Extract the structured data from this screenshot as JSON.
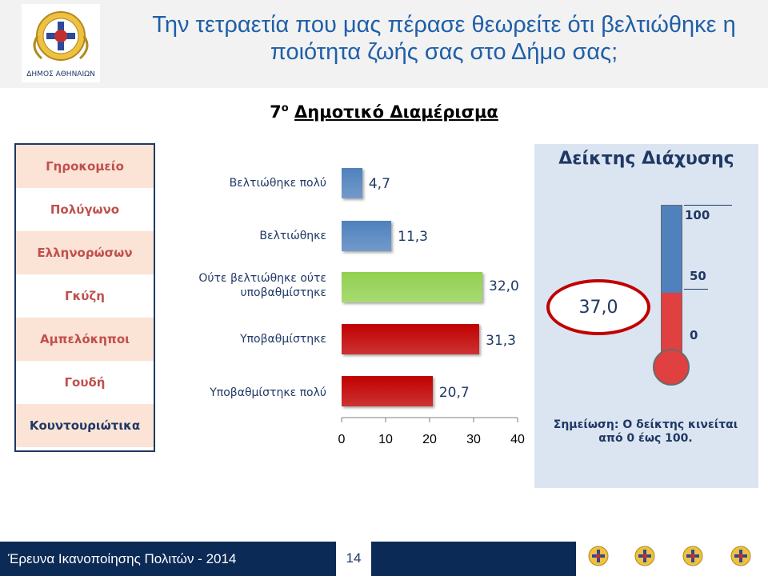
{
  "header": {
    "title_line1": "Την τετραετία που μας πέρασε θεωρείτε ότι βελτιώθηκε η",
    "title_line2": "ποιότητα ζωής σας στο Δήμο σας;",
    "logo_text": "ΔΗΜΟΣ ΑΘΗΝΑΙΩΝ"
  },
  "subtitle": {
    "number": "7",
    "sup": "ο",
    "text": "Δημοτικό Διαμέρισμα"
  },
  "districts": [
    "Γηροκομείο",
    "Πολύγωνο",
    "Ελληνορώσων",
    "Γκύζη",
    "Αμπελόκηποι",
    "Γουδή",
    "Κουντουριώτικα"
  ],
  "chart_data": {
    "type": "bar",
    "orientation": "horizontal",
    "categories": [
      "Βελτιώθηκε πολύ",
      "Βελτιώθηκε",
      "Ούτε βελτιώθηκε ούτε υποβαθμίστηκε",
      "Υποβαθμίστηκε",
      "Υποβαθμίστηκε πολύ"
    ],
    "values": [
      4.7,
      11.3,
      32.0,
      31.3,
      20.7
    ],
    "value_labels": [
      "4,7",
      "11,3",
      "32,0",
      "31,3",
      "20,7"
    ],
    "colors": [
      "#4f81bd",
      "#4f81bd",
      "#92d050",
      "#c00000",
      "#c00000"
    ],
    "xlim": [
      0,
      40
    ],
    "xticks": [
      "0",
      "10",
      "20",
      "30",
      "40"
    ]
  },
  "index": {
    "title": "Δείκτης Διάχυσης",
    "value": "37,0",
    "value_number": 37.0,
    "scale": [
      "100",
      "50",
      "0"
    ],
    "note_line1": "Σημείωση: Ο δείκτης κινείται",
    "note_line2": "από 0 έως 100."
  },
  "footer": {
    "text": "Έρευνα Ικανοποίησης Πολιτών - 2014",
    "page": "14"
  },
  "colors": {
    "title_blue": "#1f5fa8",
    "navy": "#1f3864",
    "district_red": "#c0504d",
    "panel_bg": "#dbe5f1",
    "footer_bg": "#0b2a55"
  }
}
